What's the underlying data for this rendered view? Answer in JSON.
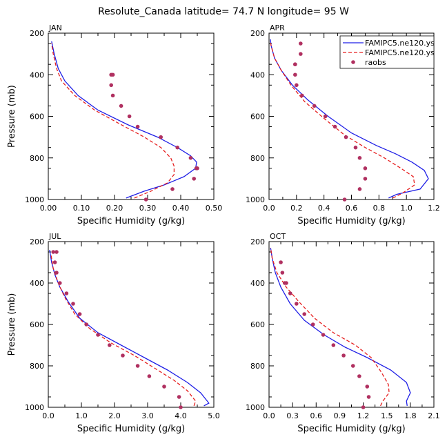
{
  "figure_title": "Resolute_Canada   latitude= 74.7 N longitude= 95 W",
  "legend": {
    "entries": [
      {
        "label": "FAMIPC5.ne120.ys",
        "color": "#1f1fe6",
        "style": "solid"
      },
      {
        "label": "FAMIPC5.ne120.ys",
        "color": "#e61f1f",
        "style": "dashed"
      },
      {
        "label": "raobs",
        "color": "#b03060",
        "style": "dots"
      }
    ]
  },
  "chart_data": [
    {
      "type": "line",
      "panel": "JAN",
      "xlabel": "Specific Humidity (g/kg)",
      "ylabel": "Pressure (mb)",
      "xlim": [
        0,
        0.5
      ],
      "ylim": [
        1000,
        200
      ],
      "y_inverted": true,
      "xticks": [
        "0.00",
        "0.10",
        "0.20",
        "0.30",
        "0.40",
        "0.50"
      ],
      "yticks": [
        "200",
        "400",
        "600",
        "800",
        "1000"
      ],
      "series": [
        {
          "name": "FAMIPC5.ne120.ys",
          "color": "#1f1fe6",
          "style": "solid",
          "x": [
            0.235,
            0.29,
            0.35,
            0.41,
            0.445,
            0.448,
            0.43,
            0.39,
            0.33,
            0.24,
            0.15,
            0.09,
            0.05,
            0.03,
            0.018,
            0.01
          ],
          "y": [
            993,
            960,
            930,
            890,
            850,
            820,
            790,
            750,
            700,
            640,
            570,
            500,
            430,
            370,
            300,
            240
          ]
        },
        {
          "name": "FAMIPC5.ne120.ys",
          "color": "#e61f1f",
          "style": "dashed",
          "x": [
            0.26,
            0.31,
            0.36,
            0.38,
            0.38,
            0.37,
            0.34,
            0.29,
            0.22,
            0.14,
            0.08,
            0.04,
            0.025,
            0.015,
            0.01
          ],
          "y": [
            993,
            960,
            920,
            880,
            840,
            800,
            750,
            700,
            640,
            570,
            500,
            430,
            370,
            300,
            250
          ]
        },
        {
          "name": "raobs",
          "color": "#b03060",
          "style": "dots",
          "x": [
            0.295,
            0.375,
            0.44,
            0.447,
            0.45,
            0.43,
            0.39,
            0.34,
            0.27,
            0.245,
            0.22,
            0.195,
            0.19,
            0.19,
            0.195
          ],
          "y": [
            1000,
            950,
            900,
            850,
            850,
            800,
            750,
            700,
            650,
            600,
            550,
            500,
            450,
            400,
            400
          ]
        }
      ]
    },
    {
      "type": "line",
      "panel": "APR",
      "xlabel": "Specific Humidity (g/kg)",
      "ylabel": "Pressure (mb)",
      "xlim": [
        0,
        1.2
      ],
      "ylim": [
        1000,
        200
      ],
      "y_inverted": true,
      "xticks": [
        "0.0",
        "0.2",
        "0.4",
        "0.6",
        "0.8",
        "1.0",
        "1.2"
      ],
      "yticks": [
        "200",
        "400",
        "600",
        "800",
        "1000"
      ],
      "series": [
        {
          "name": "FAMIPC5.ne120.ys",
          "color": "#1f1fe6",
          "style": "solid",
          "x": [
            0.87,
            0.93,
            1.1,
            1.16,
            1.13,
            1.04,
            0.92,
            0.78,
            0.6,
            0.43,
            0.28,
            0.17,
            0.09,
            0.04,
            0.015,
            0.01
          ],
          "y": [
            993,
            975,
            950,
            900,
            860,
            820,
            780,
            740,
            680,
            600,
            520,
            450,
            380,
            320,
            260,
            230
          ]
        },
        {
          "name": "FAMIPC5.ne120.ys",
          "color": "#e61f1f",
          "style": "dashed",
          "x": [
            0.9,
            0.97,
            1.06,
            1.05,
            0.96,
            0.84,
            0.7,
            0.55,
            0.4,
            0.26,
            0.16,
            0.09,
            0.04,
            0.015,
            0.01
          ],
          "y": [
            993,
            970,
            930,
            890,
            850,
            800,
            750,
            690,
            610,
            530,
            450,
            380,
            320,
            260,
            240
          ]
        },
        {
          "name": "raobs",
          "color": "#b03060",
          "style": "dots",
          "x": [
            0.55,
            0.66,
            0.7,
            0.7,
            0.66,
            0.63,
            0.56,
            0.48,
            0.41,
            0.33,
            0.24,
            0.2,
            0.19,
            0.19,
            0.19,
            0.23,
            0.23
          ],
          "y": [
            1000,
            950,
            900,
            850,
            800,
            750,
            700,
            650,
            600,
            550,
            500,
            450,
            400,
            350,
            350,
            300,
            250
          ]
        }
      ]
    },
    {
      "type": "line",
      "panel": "JUL",
      "xlabel": "Specific Humidity (g/kg)",
      "ylabel": "Pressure (mb)",
      "xlim": [
        0,
        5.0
      ],
      "ylim": [
        1000,
        200
      ],
      "y_inverted": true,
      "xticks": [
        "0.0",
        "1.0",
        "2.0",
        "3.0",
        "4.0",
        "5.0"
      ],
      "yticks": [
        "200",
        "400",
        "600",
        "800",
        "1000"
      ],
      "series": [
        {
          "name": "FAMIPC5.ne120.ys",
          "color": "#1f1fe6",
          "style": "solid",
          "x": [
            4.7,
            4.85,
            4.6,
            4.2,
            3.6,
            2.9,
            2.2,
            1.5,
            0.95,
            0.6,
            0.35,
            0.2,
            0.1,
            0.04
          ],
          "y": [
            993,
            980,
            930,
            880,
            820,
            760,
            700,
            640,
            570,
            490,
            420,
            360,
            300,
            240
          ]
        },
        {
          "name": "FAMIPC5.ne120.ys",
          "color": "#e61f1f",
          "style": "dashed",
          "x": [
            4.4,
            4.45,
            4.2,
            3.8,
            3.2,
            2.6,
            1.9,
            1.25,
            0.8,
            0.5,
            0.3,
            0.15,
            0.08
          ],
          "y": [
            993,
            970,
            920,
            870,
            810,
            750,
            690,
            620,
            550,
            470,
            400,
            330,
            260
          ]
        },
        {
          "name": "raobs",
          "color": "#b03060",
          "style": "dots",
          "x": [
            4.0,
            3.95,
            3.5,
            3.05,
            2.7,
            2.25,
            1.85,
            1.5,
            1.15,
            0.95,
            0.75,
            0.55,
            0.35,
            0.25,
            0.2,
            0.25,
            0.15
          ],
          "y": [
            1000,
            950,
            900,
            850,
            800,
            750,
            700,
            650,
            600,
            550,
            500,
            450,
            400,
            350,
            300,
            250,
            250
          ]
        }
      ]
    },
    {
      "type": "line",
      "panel": "OCT",
      "xlabel": "Specific Humidity (g/kg)",
      "ylabel": "Pressure (mb)",
      "xlim": [
        0,
        2.1
      ],
      "ylim": [
        1000,
        200
      ],
      "y_inverted": true,
      "xticks": [
        "0.0",
        "0.3",
        "0.6",
        "0.9",
        "1.2",
        "1.5",
        "1.8",
        "2.1"
      ],
      "yticks": [
        "200",
        "400",
        "600",
        "800",
        "1000"
      ],
      "series": [
        {
          "name": "FAMIPC5.ne120.ys",
          "color": "#1f1fe6",
          "style": "solid",
          "x": [
            1.76,
            1.75,
            1.8,
            1.75,
            1.55,
            1.25,
            0.97,
            0.7,
            0.45,
            0.27,
            0.15,
            0.08,
            0.04,
            0.02
          ],
          "y": [
            993,
            970,
            930,
            880,
            820,
            760,
            710,
            650,
            580,
            500,
            420,
            350,
            280,
            230
          ]
        },
        {
          "name": "FAMIPC5.ne120.ys",
          "color": "#e61f1f",
          "style": "dashed",
          "x": [
            1.42,
            1.45,
            1.53,
            1.52,
            1.43,
            1.3,
            1.1,
            0.82,
            0.58,
            0.38,
            0.22,
            0.1,
            0.04,
            0.02
          ],
          "y": [
            993,
            970,
            930,
            890,
            830,
            760,
            700,
            640,
            570,
            490,
            420,
            350,
            280,
            230
          ]
        },
        {
          "name": "raobs",
          "color": "#b03060",
          "style": "dots",
          "x": [
            1.2,
            1.27,
            1.25,
            1.15,
            1.07,
            0.95,
            0.82,
            0.69,
            0.56,
            0.45,
            0.35,
            0.27,
            0.22,
            0.2,
            0.17,
            0.15
          ],
          "y": [
            1000,
            950,
            900,
            850,
            800,
            750,
            700,
            650,
            600,
            550,
            500,
            450,
            400,
            400,
            350,
            300
          ]
        }
      ]
    }
  ]
}
